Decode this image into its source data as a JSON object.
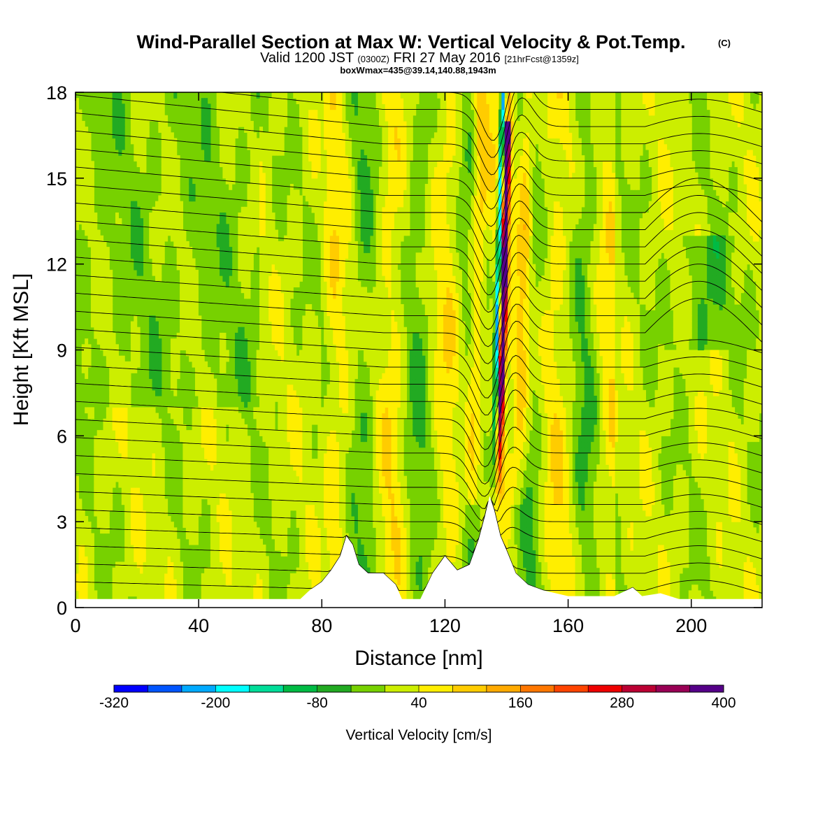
{
  "chart_data": {
    "type": "heatmap",
    "title": "Wind-Parallel Section at Max W: Vertical Velocity & Pot.Temp.",
    "title_mark": "(C)",
    "subtitle_valid": "Valid 1200 JST",
    "subtitle_utc": "(0300Z)",
    "subtitle_date": "FRI 27 May 2016",
    "subtitle_fcst": "[21hrFcst@1359z]",
    "subtitle_box": "boxWmax=435@39.14,140.88,1943m",
    "xlabel": "Distance [nm]",
    "ylabel": "Height [Kft MSL]",
    "xlim": [
      0,
      223
    ],
    "ylim": [
      0,
      18
    ],
    "x_ticks": [
      0,
      40,
      80,
      120,
      160,
      200
    ],
    "y_ticks": [
      0,
      3,
      6,
      9,
      12,
      15,
      18
    ],
    "x_tick_labels": [
      "0",
      "40",
      "80",
      "120",
      "160",
      "200"
    ],
    "y_tick_labels": [
      "0",
      "3",
      "6",
      "9",
      "12",
      "15",
      "18"
    ],
    "colorbar": {
      "title": "Vertical Velocity [cm/s]",
      "min": -320,
      "max": 400,
      "step": 40,
      "labels": [
        "-320",
        "-200",
        "-80",
        "40",
        "160",
        "280",
        "400"
      ],
      "label_values": [
        -320,
        -200,
        -80,
        40,
        160,
        280,
        400
      ],
      "colors": [
        "#0000ff",
        "#0055ff",
        "#00aaff",
        "#00ffff",
        "#00dd99",
        "#00bb44",
        "#22aa22",
        "#77d100",
        "#ccee00",
        "#ffee00",
        "#ffcc00",
        "#ffaa00",
        "#ff7700",
        "#ff4400",
        "#ee0000",
        "#bb0033",
        "#990055",
        "#550088"
      ]
    },
    "terrain_nm_kft": [
      [
        0,
        0.3
      ],
      [
        20,
        0.3
      ],
      [
        60,
        0.3
      ],
      [
        73,
        0.3
      ],
      [
        76,
        0.6
      ],
      [
        80,
        0.9
      ],
      [
        83,
        1.3
      ],
      [
        86,
        1.8
      ],
      [
        88,
        2.5
      ],
      [
        90,
        2.2
      ],
      [
        92,
        1.5
      ],
      [
        95,
        1.2
      ],
      [
        100,
        1.2
      ],
      [
        104,
        0.8
      ],
      [
        106,
        0.3
      ],
      [
        112,
        0.3
      ],
      [
        116,
        1.2
      ],
      [
        120,
        1.8
      ],
      [
        124,
        1.3
      ],
      [
        128,
        1.5
      ],
      [
        131,
        2.4
      ],
      [
        133,
        3.2
      ],
      [
        134.5,
        3.9
      ],
      [
        136,
        3.4
      ],
      [
        138,
        2.5
      ],
      [
        140,
        2.0
      ],
      [
        143,
        1.2
      ],
      [
        147,
        0.8
      ],
      [
        152,
        0.6
      ],
      [
        160,
        0.4
      ],
      [
        175,
        0.4
      ],
      [
        181,
        0.7
      ],
      [
        184,
        0.4
      ],
      [
        190,
        0.5
      ],
      [
        196,
        0.3
      ],
      [
        223,
        0.3
      ]
    ],
    "updraft_core": {
      "x_nm": 136,
      "w_max_cms": 435,
      "top_lean_x_nm": 140
    }
  }
}
